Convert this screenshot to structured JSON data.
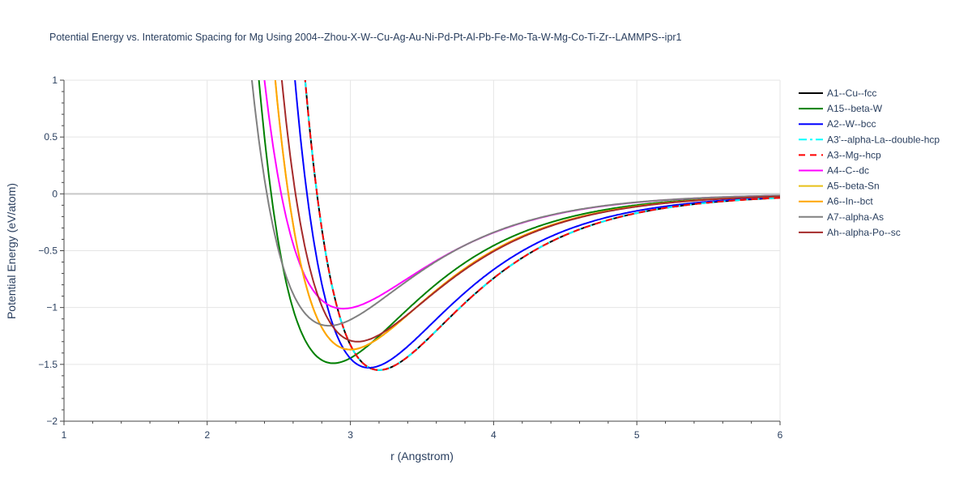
{
  "chart_data": {
    "type": "line",
    "title": "Potential Energy vs. Interatomic Spacing for Mg Using 2004--Zhou-X-W--Cu-Ag-Au-Ni-Pd-Pt-Al-Pb-Fe-Mo-Ta-W-Mg-Co-Ti-Zr--LAMMPS--ipr1",
    "xlabel": "r (Angstrom)",
    "ylabel": "Potential Energy (eV/atom)",
    "xlim": [
      1,
      6
    ],
    "ylim": [
      -2,
      1
    ],
    "xticks": [
      1,
      2,
      3,
      4,
      5,
      6
    ],
    "yticks": [
      -2,
      -1.5,
      -1,
      -0.5,
      0,
      0.5,
      1
    ],
    "ytick_labels": [
      "−2",
      "−1.5",
      "−1",
      "−0.5",
      "0",
      "0.5",
      "1"
    ],
    "legend_position": "right",
    "series": [
      {
        "name": "A1--Cu--fcc",
        "color": "#000000",
        "dash": "solid",
        "r0": 3.2,
        "e0": -1.55,
        "alpha": 1.6
      },
      {
        "name": "A15--beta-W",
        "color": "#008000",
        "dash": "solid",
        "r0": 2.88,
        "e0": -1.49,
        "alpha": 1.6
      },
      {
        "name": "A2--W--bcc",
        "color": "#0000ff",
        "dash": "solid",
        "r0": 3.13,
        "e0": -1.53,
        "alpha": 1.6
      },
      {
        "name": "A3'--alpha-La--double-hcp",
        "color": "#00ffff",
        "dash": "dashdot",
        "r0": 3.2,
        "e0": -1.55,
        "alpha": 1.6
      },
      {
        "name": "A3--Mg--hcp",
        "color": "#ff0000",
        "dash": "dash",
        "r0": 3.2,
        "e0": -1.55,
        "alpha": 1.6
      },
      {
        "name": "A4--C--dc",
        "color": "#ff00ff",
        "dash": "solid",
        "r0": 2.95,
        "e0": -1.01,
        "alpha": 1.6
      },
      {
        "name": "A5--beta-Sn",
        "color": "#e8c018",
        "dash": "solid",
        "r0": 3.0,
        "e0": -1.37,
        "alpha": 1.6
      },
      {
        "name": "A6--In--bct",
        "color": "#ffa500",
        "dash": "solid",
        "r0": 3.0,
        "e0": -1.37,
        "alpha": 1.6
      },
      {
        "name": "A7--alpha-As",
        "color": "#808080",
        "dash": "solid",
        "r0": 2.85,
        "e0": -1.16,
        "alpha": 1.6
      },
      {
        "name": "Ah--alpha-Po--sc",
        "color": "#a52a2a",
        "dash": "solid",
        "r0": 3.05,
        "e0": -1.3,
        "alpha": 1.6
      }
    ]
  }
}
